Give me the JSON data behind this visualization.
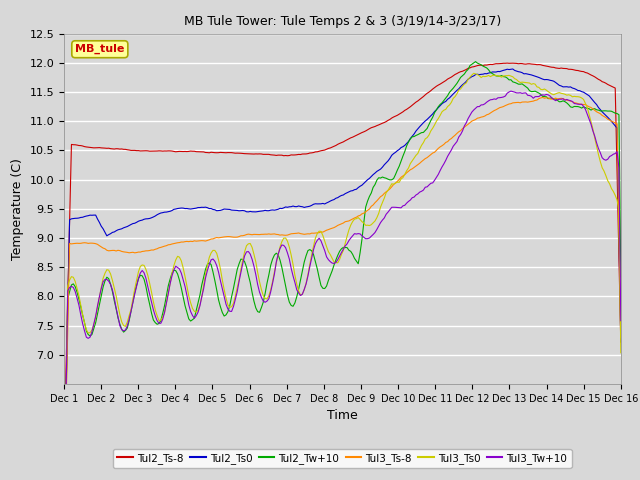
{
  "title": "MB Tule Tower: Tule Temps 2 & 3 (3/19/14-3/23/17)",
  "xlabel": "Time",
  "ylabel": "Temperature (C)",
  "ylim": [
    6.5,
    12.5
  ],
  "xlim": [
    0,
    15
  ],
  "xtick_labels": [
    "Dec 1",
    "Dec 2",
    "Dec 3",
    "Dec 4",
    "Dec 5",
    "Dec 6",
    "Dec 7",
    "Dec 8",
    "Dec 9",
    "Dec 10",
    "Dec 11",
    "Dec 12",
    "Dec 13",
    "Dec 14",
    "Dec 15",
    "Dec 16"
  ],
  "ytick_vals": [
    7.0,
    7.5,
    8.0,
    8.5,
    9.0,
    9.5,
    10.0,
    10.5,
    11.0,
    11.5,
    12.0,
    12.5
  ],
  "background_color": "#d8d8d8",
  "plot_bg_color": "#d8d8d8",
  "grid_color": "#ffffff",
  "legend_label": "MB_tule",
  "legend_box_color": "#ffff99",
  "legend_box_edge": "#aaaa00",
  "legend_text_color": "#cc0000",
  "series_names": [
    "Tul2_Ts-8",
    "Tul2_Ts0",
    "Tul2_Tw+10",
    "Tul3_Ts-8",
    "Tul3_Ts0",
    "Tul3_Tw+10"
  ],
  "series_colors": [
    "#cc0000",
    "#0000cc",
    "#00aa00",
    "#ff8800",
    "#cccc00",
    "#8800cc"
  ],
  "linewidth": 0.8
}
